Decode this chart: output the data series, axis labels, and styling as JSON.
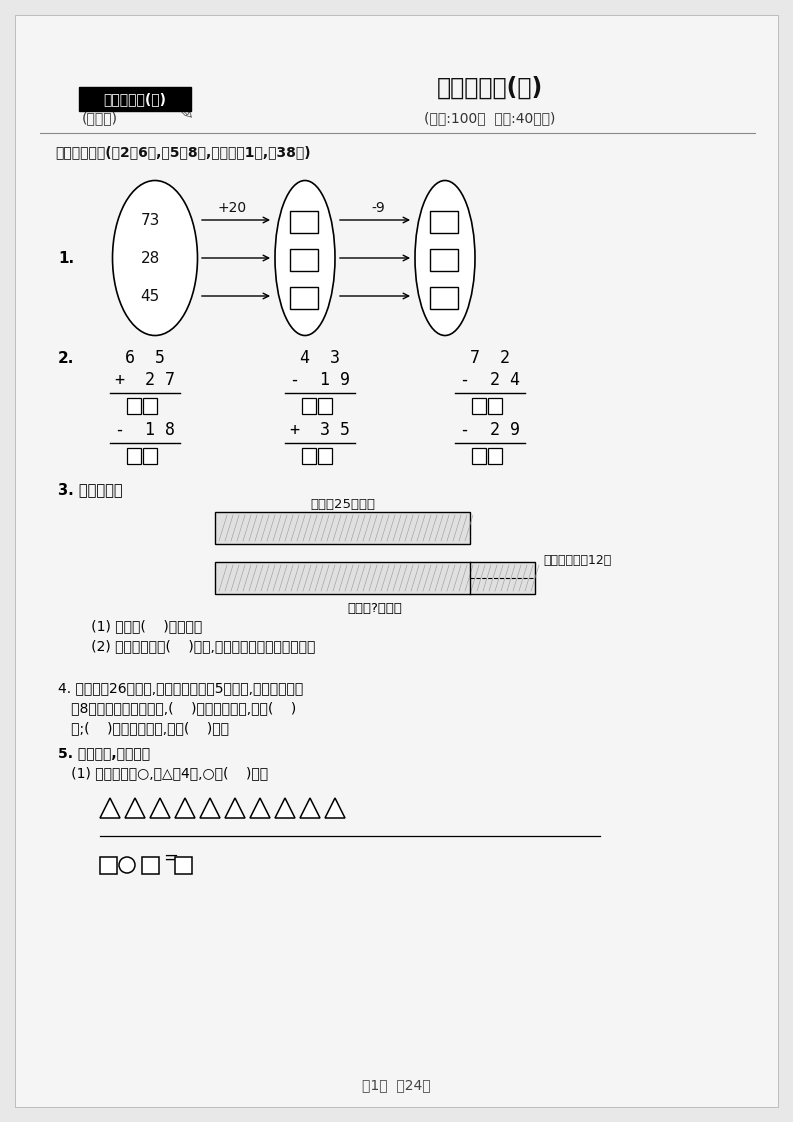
{
  "bg_color": "#e8e8e8",
  "page_bg": "#f5f5f5",
  "title_box_text": "二年级数学(上)",
  "title_main": "分类测评卷(一)",
  "subtitle_left": "(江苏版)",
  "subtitle_right": "(满分:100分  时间:40分钟)",
  "section1_title": "一、填一填。(第2题6分,第5题8分,其余每空1分,入38分)",
  "q1_label": "1.",
  "q2_label": "2.",
  "q3_label": "3. 看图填空。",
  "q4_label": "4. 小文写了26个大字,小丽比小文多写5个大字,小明比小文少",
  "q4_label2": "   写8个大字。三个人相比,(    )写的大字最多,写了(    )",
  "q4_label3": "   个;(    )写的大字最少,写了(    )个。",
  "q5_label": "5. 先画一画,再解答。",
  "q5_sub1": "   (1) 在横线上画○,比△兵4个,○有(    )个。",
  "q3_sub1": "   (1) 小明有(    )张卡片。",
  "q3_sub2": "   (2) 小明送给小丽(    )张后,两人的卡片张数就同样多。",
  "page_footer": "第1页  入24页",
  "bar1_label": "小丽朦25张卡片",
  "bar2_label": "小明有?张卡片",
  "bar_note": "小明比小丽夒12张"
}
